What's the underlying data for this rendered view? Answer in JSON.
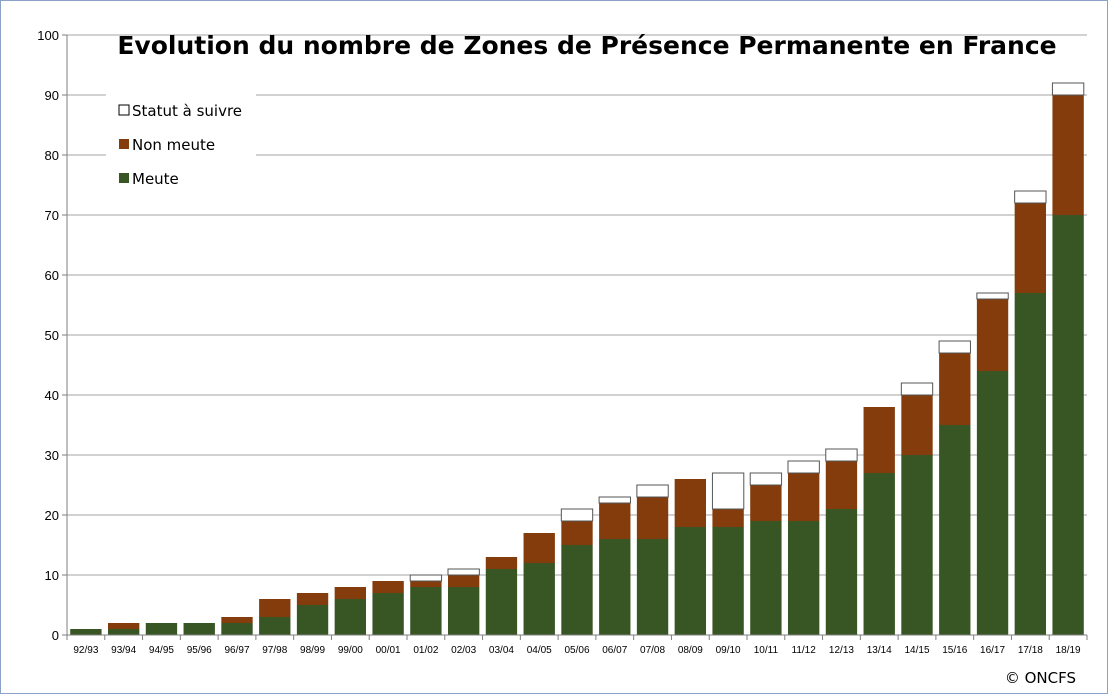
{
  "chart_data": {
    "type": "bar",
    "stacked": true,
    "title": "Evolution du nombre de Zones de Présence Permanente en France",
    "xlabel": "",
    "ylabel": "",
    "ylim": [
      0,
      100
    ],
    "yticks": [
      0,
      10,
      20,
      30,
      40,
      50,
      60,
      70,
      80,
      90,
      100
    ],
    "grid": true,
    "legend_position": "top-left",
    "categories": [
      "92/93",
      "93/94",
      "94/95",
      "95/96",
      "96/97",
      "97/98",
      "98/99",
      "99/00",
      "00/01",
      "01/02",
      "02/03",
      "03/04",
      "04/05",
      "05/06",
      "06/07",
      "07/08",
      "08/09",
      "09/10",
      "10/11",
      "11/12",
      "12/13",
      "13/14",
      "14/15",
      "15/16",
      "16/17",
      "17/18",
      "18/19"
    ],
    "series": [
      {
        "name": "Meute",
        "color": "#375623",
        "values": [
          1,
          1,
          2,
          2,
          2,
          3,
          5,
          6,
          7,
          8,
          8,
          11,
          12,
          15,
          16,
          16,
          18,
          18,
          19,
          19,
          21,
          27,
          30,
          35,
          44,
          57,
          70
        ]
      },
      {
        "name": "Non meute",
        "color": "#843c0c",
        "values": [
          0,
          1,
          0,
          0,
          1,
          3,
          2,
          2,
          2,
          1,
          2,
          2,
          5,
          4,
          6,
          7,
          8,
          3,
          6,
          8,
          8,
          11,
          10,
          12,
          12,
          15,
          20
        ]
      },
      {
        "name": "Statut à suivre",
        "color": "#ffffff",
        "values": [
          0,
          0,
          0,
          0,
          0,
          0,
          0,
          0,
          0,
          1,
          1,
          0,
          0,
          2,
          1,
          2,
          0,
          6,
          2,
          2,
          2,
          0,
          2,
          2,
          1,
          2,
          2
        ]
      }
    ],
    "legend_order": [
      "Statut à suivre",
      "Non meute",
      "Meute"
    ],
    "credit": "© ONCFS"
  }
}
